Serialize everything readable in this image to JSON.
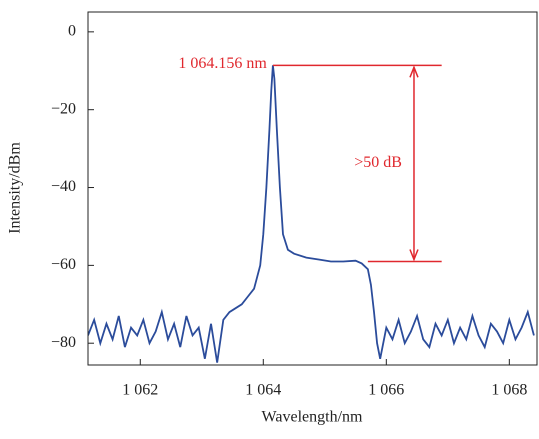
{
  "chart_data": {
    "type": "line",
    "xlabel": "Wavelength/nm",
    "ylabel": "Intensity/dBm",
    "xlim": [
      1061.15,
      1068.45
    ],
    "ylim": [
      -85.6,
      5.1
    ],
    "xticks": [
      {
        "value": 1062,
        "label": "1 062"
      },
      {
        "value": 1064,
        "label": "1 064"
      },
      {
        "value": 1066,
        "label": "1 066"
      },
      {
        "value": 1068,
        "label": "1 068"
      }
    ],
    "yticks": [
      0,
      {
        "value": -20,
        "label": "−20"
      },
      {
        "value": -40,
        "label": "−40"
      },
      {
        "value": -60,
        "label": "−60"
      },
      {
        "value": -80,
        "label": "−80"
      }
    ],
    "series": [
      {
        "color": "#2b4c9b",
        "x": [
          1061.15,
          1061.25,
          1061.35,
          1061.45,
          1061.55,
          1061.65,
          1061.75,
          1061.85,
          1061.95,
          1062.05,
          1062.15,
          1062.25,
          1062.35,
          1062.45,
          1062.55,
          1062.65,
          1062.75,
          1062.85,
          1062.95,
          1063.05,
          1063.15,
          1063.25,
          1063.35,
          1063.45,
          1063.55,
          1063.65,
          1063.75,
          1063.85,
          1063.95,
          1064.0,
          1064.05,
          1064.1,
          1064.13,
          1064.156,
          1064.18,
          1064.22,
          1064.27,
          1064.32,
          1064.4,
          1064.5,
          1064.7,
          1064.9,
          1065.1,
          1065.3,
          1065.5,
          1065.6,
          1065.7,
          1065.75,
          1065.8,
          1065.85,
          1065.9,
          1066.0,
          1066.1,
          1066.2,
          1066.3,
          1066.4,
          1066.5,
          1066.6,
          1066.7,
          1066.8,
          1066.9,
          1067.0,
          1067.1,
          1067.2,
          1067.3,
          1067.4,
          1067.5,
          1067.6,
          1067.7,
          1067.8,
          1067.9,
          1068.0,
          1068.1,
          1068.2,
          1068.3,
          1068.4
        ],
        "values": [
          -78,
          -74,
          -80,
          -75,
          -79,
          -73,
          -81,
          -76,
          -78,
          -74,
          -80,
          -77,
          -72,
          -79,
          -75,
          -81,
          -73,
          -78,
          -76,
          -84,
          -75,
          -85,
          -74,
          -72,
          -71,
          -70,
          -68,
          -66,
          -60,
          -52,
          -40,
          -25,
          -15,
          -8.6,
          -12,
          -25,
          -40,
          -52,
          -56,
          -57,
          -58,
          -58.5,
          -59,
          -59,
          -58.8,
          -59.5,
          -61,
          -65,
          -72,
          -80,
          -84,
          -76,
          -79,
          -74,
          -80,
          -77,
          -73,
          -79,
          -81,
          -75,
          -78,
          -74,
          -80,
          -76,
          -79,
          -73,
          -78,
          -81,
          -75,
          -77,
          -80,
          -74,
          -79,
          -76,
          -72,
          -78
        ]
      }
    ],
    "annotation": {
      "color": "#e0282e",
      "peak_label": "1 064.156 nm",
      "gap_label": ">50 dB",
      "peak_x": 1064.156,
      "peak_level": -8.6,
      "floor_x": 1065.7,
      "floor_level": -59,
      "line_end_x": 1066.9,
      "arrow_x": 1066.45
    }
  }
}
